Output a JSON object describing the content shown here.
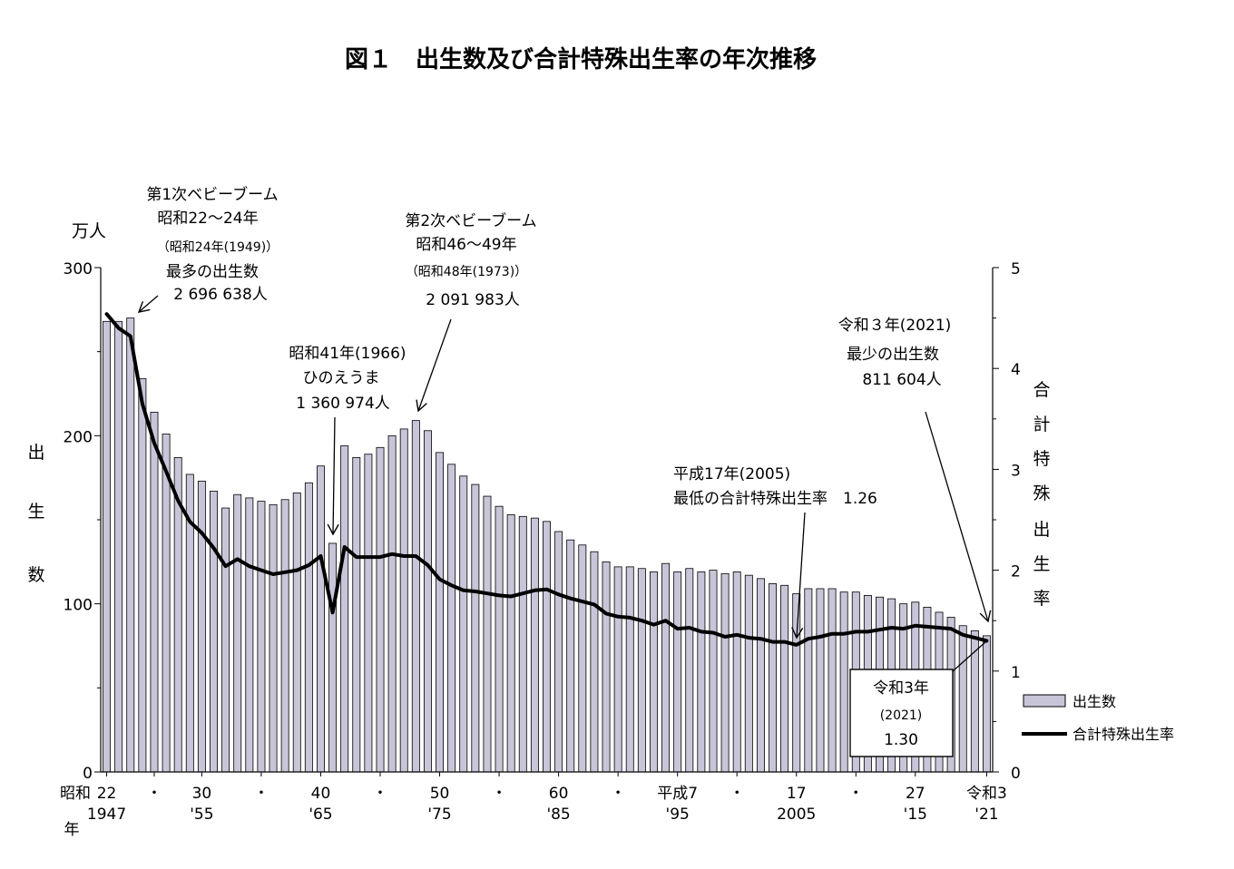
{
  "title": "図１　出生数及び合計特殊出生率の年次推移",
  "chart_data": {
    "type": "bar+line",
    "years": [
      1947,
      1948,
      1949,
      1950,
      1951,
      1952,
      1953,
      1954,
      1955,
      1956,
      1957,
      1958,
      1959,
      1960,
      1961,
      1962,
      1963,
      1964,
      1965,
      1966,
      1967,
      1968,
      1969,
      1970,
      1971,
      1972,
      1973,
      1974,
      1975,
      1976,
      1977,
      1978,
      1979,
      1980,
      1981,
      1982,
      1983,
      1984,
      1985,
      1986,
      1987,
      1988,
      1989,
      1990,
      1991,
      1992,
      1993,
      1994,
      1995,
      1996,
      1997,
      1998,
      1999,
      2000,
      2001,
      2002,
      2003,
      2004,
      2005,
      2006,
      2007,
      2008,
      2009,
      2010,
      2011,
      2012,
      2013,
      2014,
      2015,
      2016,
      2017,
      2018,
      2019,
      2020,
      2021
    ],
    "series": [
      {
        "name": "出生数",
        "type": "bar",
        "axis": "left",
        "color": "#c9c5d9",
        "values": [
          268,
          268,
          270,
          234,
          214,
          201,
          187,
          177,
          173,
          167,
          157,
          165,
          163,
          161,
          159,
          162,
          166,
          172,
          182,
          136,
          194,
          187,
          189,
          193,
          200,
          204,
          209,
          203,
          190,
          183,
          176,
          171,
          164,
          158,
          153,
          152,
          151,
          149,
          143,
          138,
          135,
          131,
          125,
          122,
          122,
          121,
          119,
          124,
          119,
          121,
          119,
          120,
          118,
          119,
          117,
          115,
          112,
          111,
          106,
          109,
          109,
          109,
          107,
          107,
          105,
          104,
          103,
          100,
          101,
          98,
          95,
          92,
          87,
          84,
          81
        ]
      },
      {
        "name": "合計特殊出生率",
        "type": "line",
        "axis": "right",
        "color": "#000000",
        "values": [
          4.54,
          4.4,
          4.32,
          3.65,
          3.26,
          2.98,
          2.69,
          2.48,
          2.37,
          2.22,
          2.04,
          2.11,
          2.04,
          2.0,
          1.96,
          1.98,
          2.0,
          2.05,
          2.14,
          1.58,
          2.23,
          2.13,
          2.13,
          2.13,
          2.16,
          2.14,
          2.14,
          2.05,
          1.91,
          1.85,
          1.8,
          1.79,
          1.77,
          1.75,
          1.74,
          1.77,
          1.8,
          1.81,
          1.76,
          1.72,
          1.69,
          1.66,
          1.57,
          1.54,
          1.53,
          1.5,
          1.46,
          1.5,
          1.42,
          1.43,
          1.39,
          1.38,
          1.34,
          1.36,
          1.33,
          1.32,
          1.29,
          1.29,
          1.26,
          1.32,
          1.34,
          1.37,
          1.37,
          1.39,
          1.39,
          1.41,
          1.43,
          1.42,
          1.45,
          1.44,
          1.43,
          1.42,
          1.36,
          1.33,
          1.3
        ]
      }
    ],
    "left_axis": {
      "unit": "万人",
      "label": [
        "出",
        "生",
        "数"
      ],
      "ylim": [
        0,
        300
      ],
      "ticks": [
        "0",
        "100",
        "200",
        "300"
      ]
    },
    "right_axis": {
      "label": [
        "合",
        "計",
        "特",
        "殊",
        "出",
        "生",
        "率"
      ],
      "ylim": [
        0,
        5
      ],
      "ticks": [
        "0",
        "1",
        "2",
        "3",
        "4",
        "5"
      ]
    },
    "x_ticks": [
      {
        "year": 1947,
        "top": "22",
        "bottom": "1947"
      },
      {
        "year": 1951,
        "top": "・",
        "bottom": ""
      },
      {
        "year": 1955,
        "top": "30",
        "bottom": "'55"
      },
      {
        "year": 1960,
        "top": "・",
        "bottom": ""
      },
      {
        "year": 1965,
        "top": "40",
        "bottom": "'65"
      },
      {
        "year": 1970,
        "top": "・",
        "bottom": ""
      },
      {
        "year": 1975,
        "top": "50",
        "bottom": "'75"
      },
      {
        "year": 1980,
        "top": "・",
        "bottom": ""
      },
      {
        "year": 1985,
        "top": "60",
        "bottom": "'85"
      },
      {
        "year": 1990,
        "top": "・",
        "bottom": ""
      },
      {
        "year": 1995,
        "top": "平成7",
        "bottom": "'95"
      },
      {
        "year": 2000,
        "top": "・",
        "bottom": ""
      },
      {
        "year": 2005,
        "top": "17",
        "bottom": "2005"
      },
      {
        "year": 2010,
        "top": "・",
        "bottom": ""
      },
      {
        "year": 2015,
        "top": "27",
        "bottom": "'15"
      },
      {
        "year": 2021,
        "top": "令和3",
        "bottom": "'21"
      }
    ],
    "x_era_label": {
      "top": "昭和",
      "bottom": "年"
    },
    "legend": {
      "placement": "right",
      "items": [
        "出生数",
        "合計特殊出生率"
      ]
    },
    "annotations": {
      "boom1": {
        "lines": [
          "第1次ベビーブーム",
          "昭和22～24年",
          "（昭和24年(1949)）",
          "最多の出生数",
          "2 696 638人"
        ]
      },
      "boom2": {
        "lines": [
          "第2次ベビーブーム",
          "昭和46～49年",
          "（昭和48年(1973)）",
          "2 091 983人"
        ]
      },
      "hinoe": {
        "lines": [
          "昭和41年(1966)",
          "ひのえうま",
          "1 360 974人"
        ]
      },
      "low2005": {
        "lines": [
          "平成17年(2005)",
          "最低の合計特殊出生率　1.26"
        ]
      },
      "min2021": {
        "lines": [
          "令和３年(2021)",
          "最少の出生数",
          "811 604人"
        ]
      },
      "tfr2021": {
        "lines": [
          "令和3年",
          "(2021)",
          "1.30"
        ]
      }
    }
  }
}
